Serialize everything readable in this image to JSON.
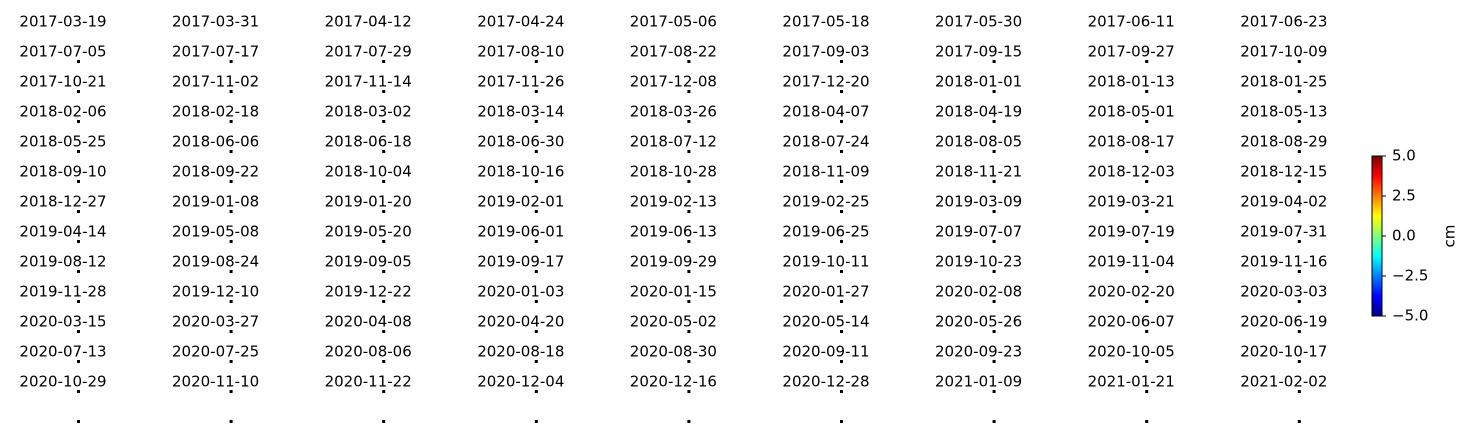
{
  "chart_data": {
    "type": "image-grid",
    "columns": 9,
    "titles": [
      "2017-03-19",
      "2017-03-31",
      "2017-04-12",
      "2017-04-24",
      "2017-05-06",
      "2017-05-18",
      "2017-05-30",
      "2017-06-11",
      "2017-06-23",
      "2017-07-05",
      "2017-07-17",
      "2017-07-29",
      "2017-08-10",
      "2017-08-22",
      "2017-09-03",
      "2017-09-15",
      "2017-09-27",
      "2017-10-09",
      "2017-10-21",
      "2017-11-02",
      "2017-11-14",
      "2017-11-26",
      "2017-12-08",
      "2017-12-20",
      "2018-01-01",
      "2018-01-13",
      "2018-01-25",
      "2018-02-06",
      "2018-02-18",
      "2018-03-02",
      "2018-03-14",
      "2018-03-26",
      "2018-04-07",
      "2018-04-19",
      "2018-05-01",
      "2018-05-13",
      "2018-05-25",
      "2018-06-06",
      "2018-06-18",
      "2018-06-30",
      "2018-07-12",
      "2018-07-24",
      "2018-08-05",
      "2018-08-17",
      "2018-08-29",
      "2018-09-10",
      "2018-09-22",
      "2018-10-04",
      "2018-10-16",
      "2018-10-28",
      "2018-11-09",
      "2018-11-21",
      "2018-12-03",
      "2018-12-15",
      "2018-12-27",
      "2019-01-08",
      "2019-01-20",
      "2019-02-01",
      "2019-02-13",
      "2019-02-25",
      "2019-03-09",
      "2019-03-21",
      "2019-04-02",
      "2019-04-14",
      "2019-05-08",
      "2019-05-20",
      "2019-06-01",
      "2019-06-13",
      "2019-06-25",
      "2019-07-07",
      "2019-07-19",
      "2019-07-31",
      "2019-08-12",
      "2019-08-24",
      "2019-09-05",
      "2019-09-17",
      "2019-09-29",
      "2019-10-11",
      "2019-10-23",
      "2019-11-04",
      "2019-11-16",
      "2019-11-28",
      "2019-12-10",
      "2019-12-22",
      "2020-01-03",
      "2020-01-15",
      "2020-01-27",
      "2020-02-08",
      "2020-02-20",
      "2020-03-03",
      "2020-03-15",
      "2020-03-27",
      "2020-04-08",
      "2020-04-20",
      "2020-05-02",
      "2020-05-14",
      "2020-05-26",
      "2020-06-07",
      "2020-06-19",
      "2020-07-13",
      "2020-07-25",
      "2020-08-06",
      "2020-08-18",
      "2020-08-30",
      "2020-09-11",
      "2020-09-23",
      "2020-10-05",
      "2020-10-17",
      "2020-10-29",
      "2020-11-10",
      "2020-11-22",
      "2020-12-04",
      "2020-12-16",
      "2020-12-28",
      "2021-01-09",
      "2021-01-21",
      "2021-02-02"
    ],
    "colorbar": {
      "label": "cm",
      "ylim": [
        -5,
        5
      ],
      "yticks": [
        {
          "value": 5,
          "label": "5.0"
        },
        {
          "value": 2.5,
          "label": "2.5"
        },
        {
          "value": 0,
          "label": "0.0"
        },
        {
          "value": -2.5,
          "label": "−2.5"
        },
        {
          "value": -5,
          "label": "−5.0"
        }
      ],
      "colormap": [
        "#00007f",
        "#0000ff",
        "#007fff",
        "#00ffff",
        "#7fff7f",
        "#ffff00",
        "#ff7f00",
        "#ff0000",
        "#7f0000"
      ]
    }
  }
}
